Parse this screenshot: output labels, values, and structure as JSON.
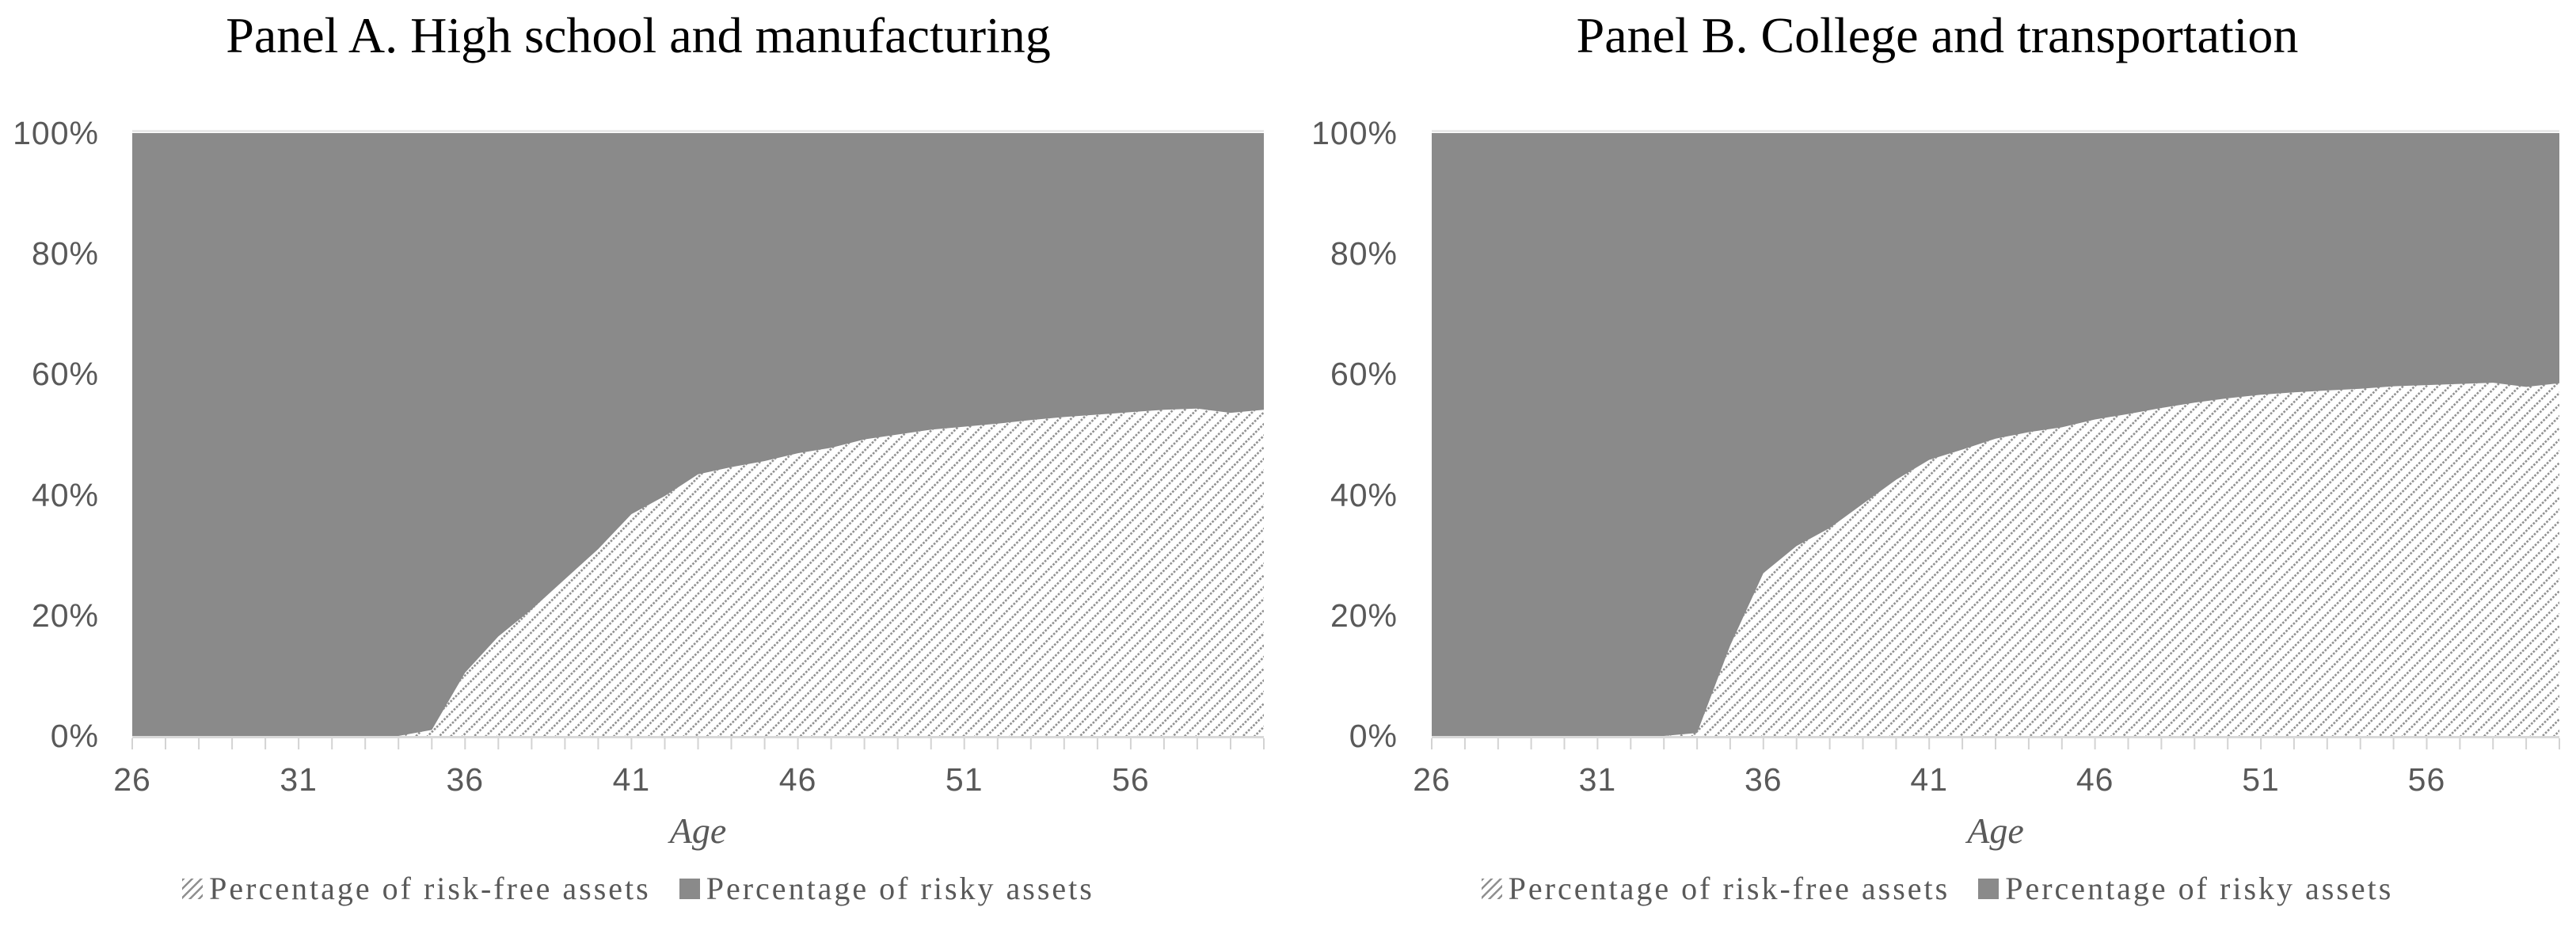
{
  "page": {
    "background": "#ffffff"
  },
  "colors": {
    "risky_fill": "#8a8a8a",
    "hatch_dot": "#8f8f8f",
    "hatch_background": "#ffffff",
    "axis_line": "#d9d9d9",
    "tick_mark": "#d3d3d3",
    "top_gridline": "#e9e9e9",
    "axis_label_text": "#595959",
    "title_text": "#000000"
  },
  "panels": [
    {
      "title": "Panel A. High school and manufacturing",
      "xlabel": "Age",
      "legend": [
        {
          "label": "Percentage of risk-free assets",
          "swatch": "hatch"
        },
        {
          "label": "Percentage of risky assets",
          "swatch": "solid"
        }
      ]
    },
    {
      "title": "Panel B. College and transportation",
      "xlabel": "Age",
      "legend": [
        {
          "label": "Percentage of risk-free assets",
          "swatch": "hatch"
        },
        {
          "label": "Percentage of risky assets",
          "swatch": "solid"
        }
      ]
    }
  ],
  "chart_data": [
    {
      "type": "area",
      "stacked": true,
      "title": "Panel A. High school and manufacturing",
      "xlabel": "Age",
      "ylabel": "",
      "xlim": [
        26,
        60
      ],
      "ylim": [
        0,
        100
      ],
      "grid": false,
      "legend_position": "bottom",
      "x_tick_labels": [
        26,
        31,
        36,
        41,
        46,
        51,
        56
      ],
      "y_tick_labels": [
        "0%",
        "20%",
        "40%",
        "60%",
        "80%",
        "100%"
      ],
      "x": [
        26,
        27,
        28,
        29,
        30,
        31,
        32,
        33,
        34,
        35,
        36,
        37,
        38,
        39,
        40,
        41,
        42,
        43,
        44,
        45,
        46,
        47,
        48,
        49,
        50,
        51,
        52,
        53,
        54,
        55,
        56,
        57,
        58,
        59,
        60
      ],
      "series": [
        {
          "name": "Percentage of risk-free assets",
          "style": "hatched",
          "values": [
            0,
            0,
            0,
            0,
            0,
            0,
            0,
            0,
            0,
            1,
            10.5,
            16.5,
            21,
            26,
            31,
            36.8,
            39.8,
            43.4,
            44.6,
            45.6,
            46.9,
            47.8,
            49.2,
            50,
            50.8,
            51.3,
            51.8,
            52.4,
            52.9,
            53.3,
            53.7,
            54.1,
            54.3,
            53.6,
            54.1
          ]
        },
        {
          "name": "Percentage of risky assets",
          "style": "solid-gray",
          "values": [
            100,
            100,
            100,
            100,
            100,
            100,
            100,
            100,
            100,
            99,
            89.5,
            83.5,
            79,
            74,
            69,
            63.2,
            60.2,
            56.6,
            55.4,
            54.4,
            53.1,
            52.2,
            50.8,
            50,
            49.2,
            48.7,
            48.2,
            47.6,
            47.1,
            46.7,
            46.3,
            45.9,
            45.7,
            46.4,
            45.9
          ]
        }
      ]
    },
    {
      "type": "area",
      "stacked": true,
      "title": "Panel B. College and transportation",
      "xlabel": "Age",
      "ylabel": "",
      "xlim": [
        26,
        60
      ],
      "ylim": [
        0,
        100
      ],
      "grid": false,
      "legend_position": "bottom",
      "x_tick_labels": [
        26,
        31,
        36,
        41,
        46,
        51,
        56
      ],
      "y_tick_labels": [
        "0%",
        "20%",
        "40%",
        "60%",
        "80%",
        "100%"
      ],
      "x": [
        26,
        27,
        28,
        29,
        30,
        31,
        32,
        33,
        34,
        35,
        36,
        37,
        38,
        39,
        40,
        41,
        42,
        43,
        44,
        45,
        46,
        47,
        48,
        49,
        50,
        51,
        52,
        53,
        54,
        55,
        56,
        57,
        58,
        59,
        60
      ],
      "series": [
        {
          "name": "Percentage of risk-free assets",
          "style": "hatched",
          "values": [
            0,
            0,
            0,
            0,
            0,
            0,
            0,
            0,
            0.5,
            15,
            27,
            31.5,
            34.5,
            38.5,
            42.5,
            45.8,
            47.5,
            49.3,
            50.4,
            51.2,
            52.5,
            53.4,
            54.4,
            55.3,
            56,
            56.6,
            57,
            57.3,
            57.6,
            58,
            58.2,
            58.4,
            58.6,
            57.9,
            58.5
          ]
        },
        {
          "name": "Percentage of risky assets",
          "style": "solid-gray",
          "values": [
            100,
            100,
            100,
            100,
            100,
            100,
            100,
            100,
            99.5,
            85,
            73,
            68.5,
            65.5,
            61.5,
            57.5,
            54.2,
            52.5,
            50.7,
            49.6,
            48.8,
            47.5,
            46.6,
            45.6,
            44.7,
            44,
            43.4,
            43,
            42.7,
            42.4,
            42,
            41.8,
            41.6,
            41.4,
            42.1,
            41.5
          ]
        }
      ]
    }
  ]
}
